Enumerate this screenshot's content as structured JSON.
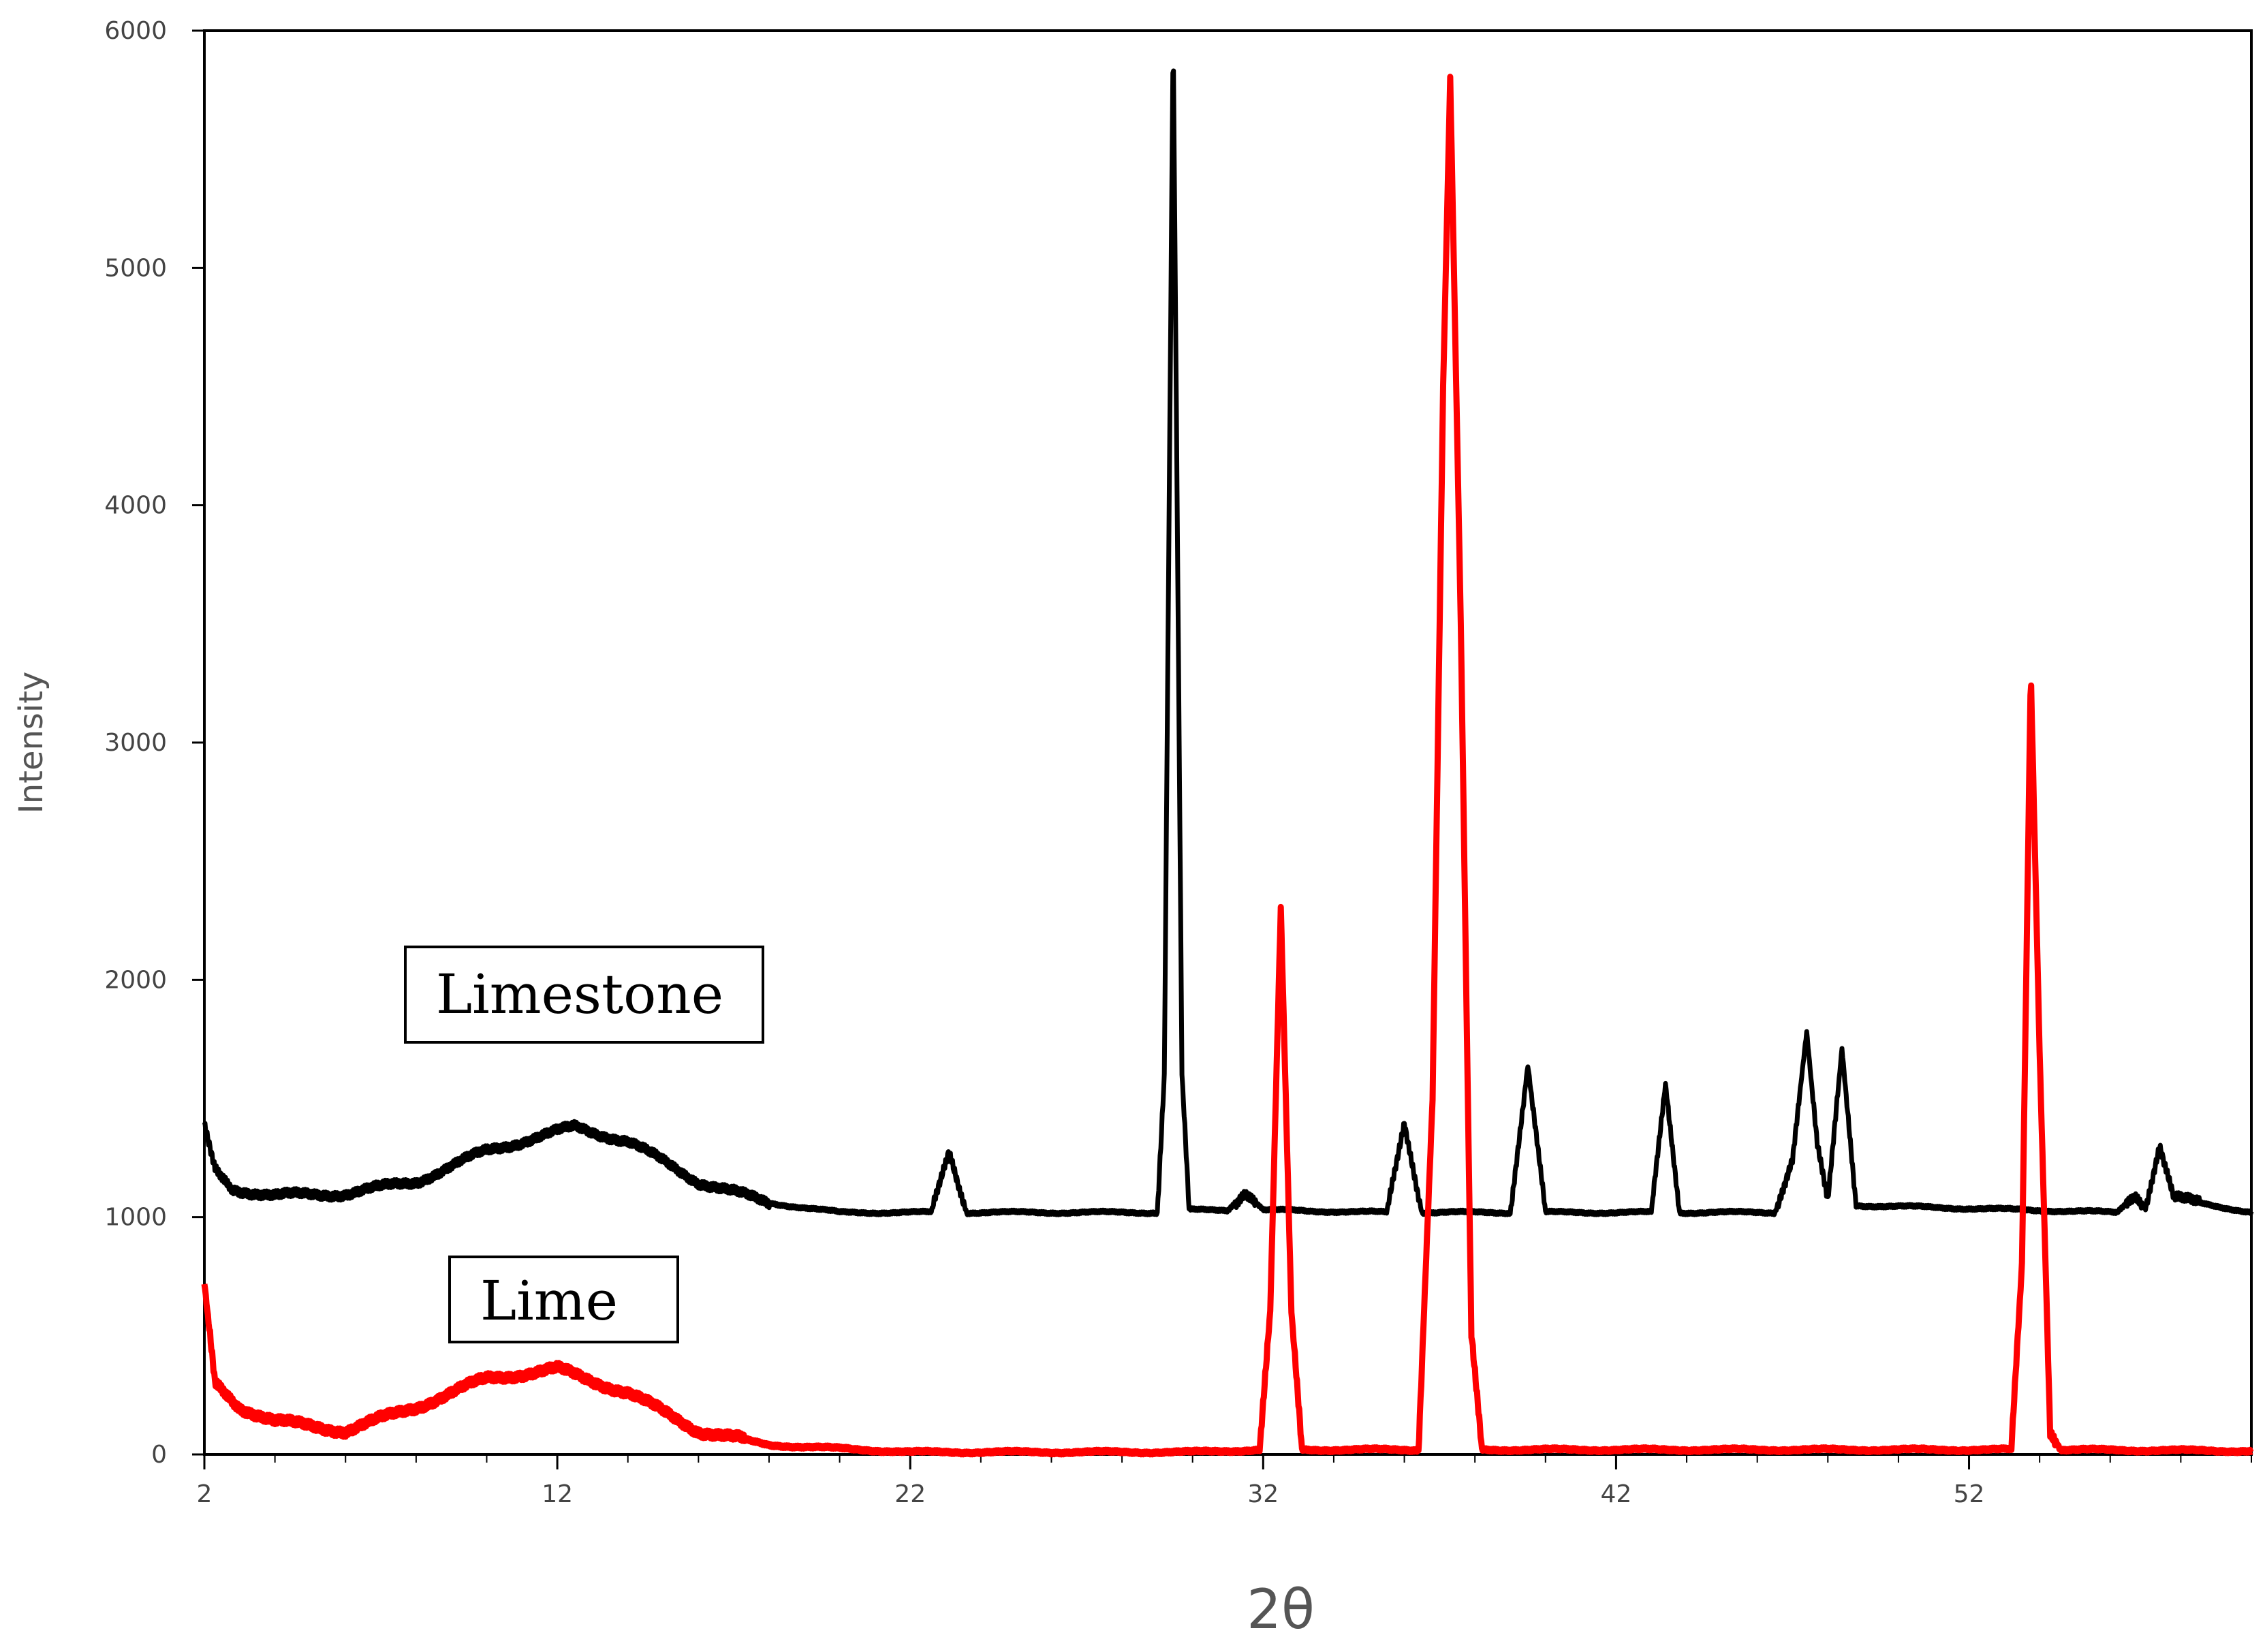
{
  "chart_data": {
    "type": "line",
    "title": "",
    "xlabel": "2θ",
    "ylabel": "Intensity",
    "xlim": [
      2,
      60
    ],
    "ylim": [
      0,
      6000
    ],
    "x_ticks": [
      2,
      12,
      22,
      32,
      42,
      52
    ],
    "y_ticks": [
      0,
      1000,
      2000,
      3000,
      4000,
      5000,
      6000
    ],
    "grid": false,
    "colors": {
      "Limestone": "#000000",
      "Lime": "#ff0000"
    },
    "series": [
      {
        "name": "Limestone",
        "baseline": 1000,
        "points": [
          [
            2,
            1380
          ],
          [
            2.3,
            1200
          ],
          [
            2.8,
            1120
          ],
          [
            4,
            1090
          ],
          [
            6,
            1100
          ],
          [
            8,
            1150
          ],
          [
            10,
            1280
          ],
          [
            12.5,
            1380
          ],
          [
            14,
            1320
          ],
          [
            16,
            1150
          ],
          [
            18,
            1060
          ],
          [
            20,
            1020
          ],
          [
            22.6,
            1020
          ],
          [
            23.1,
            1280
          ],
          [
            23.6,
            1020
          ],
          [
            26,
            1020
          ],
          [
            29,
            1020
          ],
          [
            29.2,
            1600
          ],
          [
            29.45,
            6000
          ],
          [
            29.7,
            1600
          ],
          [
            29.9,
            1030
          ],
          [
            31,
            1030
          ],
          [
            31.5,
            1110
          ],
          [
            32,
            1030
          ],
          [
            35.5,
            1020
          ],
          [
            36,
            1400
          ],
          [
            36.5,
            1020
          ],
          [
            39,
            1020
          ],
          [
            39.5,
            1640
          ],
          [
            40,
            1020
          ],
          [
            43,
            1020
          ],
          [
            43.4,
            1560
          ],
          [
            43.8,
            1020
          ],
          [
            46.5,
            1020
          ],
          [
            47,
            1250
          ],
          [
            47.4,
            1780
          ],
          [
            47.7,
            1300
          ],
          [
            48,
            1060
          ],
          [
            48.4,
            1710
          ],
          [
            48.8,
            1050
          ],
          [
            56.2,
            1020
          ],
          [
            56.7,
            1100
          ],
          [
            57,
            1040
          ],
          [
            57.4,
            1300
          ],
          [
            57.8,
            1080
          ],
          [
            60,
            1020
          ]
        ]
      },
      {
        "name": "Lime",
        "baseline": 0,
        "points": [
          [
            2,
            720
          ],
          [
            2.3,
            300
          ],
          [
            3,
            200
          ],
          [
            4,
            140
          ],
          [
            6,
            100
          ],
          [
            8,
            200
          ],
          [
            10,
            320
          ],
          [
            12,
            360
          ],
          [
            14,
            260
          ],
          [
            16,
            100
          ],
          [
            18,
            40
          ],
          [
            22,
            10
          ],
          [
            30,
            10
          ],
          [
            31.9,
            20
          ],
          [
            32.2,
            600
          ],
          [
            32.5,
            2300
          ],
          [
            32.8,
            600
          ],
          [
            33.1,
            20
          ],
          [
            36.4,
            20
          ],
          [
            36.8,
            1500
          ],
          [
            37.1,
            4500
          ],
          [
            37.3,
            5800
          ],
          [
            37.6,
            3500
          ],
          [
            37.9,
            500
          ],
          [
            38.2,
            20
          ],
          [
            53.2,
            20
          ],
          [
            53.5,
            800
          ],
          [
            53.75,
            3300
          ],
          [
            54,
            1700
          ],
          [
            54.3,
            100
          ],
          [
            54.6,
            20
          ],
          [
            60,
            15
          ]
        ]
      }
    ],
    "annotations": [
      {
        "text": "Limestone",
        "x": 12,
        "y": 2000,
        "boxed": true
      },
      {
        "text": "Lime",
        "x": 12,
        "y": 700,
        "boxed": true
      }
    ]
  }
}
